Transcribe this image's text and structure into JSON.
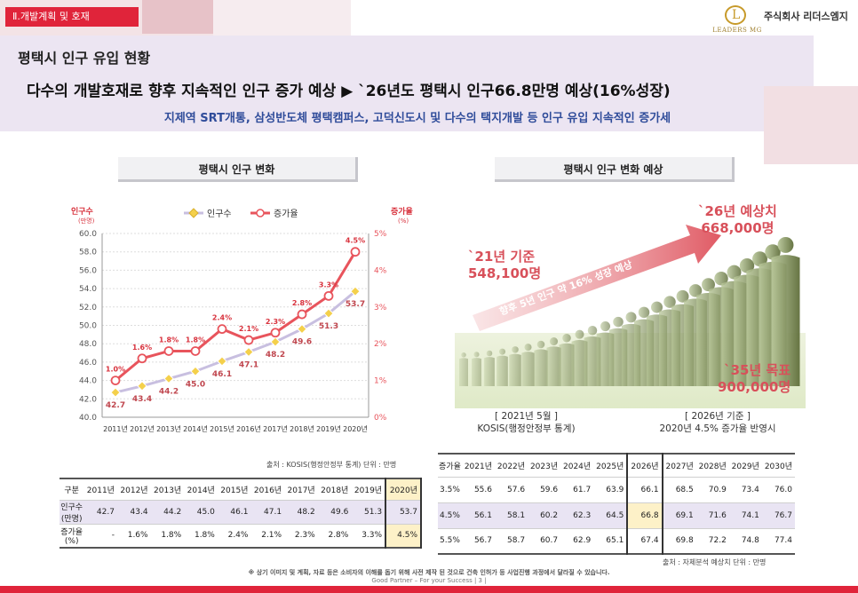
{
  "header": {
    "section_tab": "Ⅱ.개발계획 및 호재",
    "logo_text": "LEADERS MG",
    "company": "주식회사 리더스엠지",
    "page_title": "평택시 인구 유입 현황",
    "headline": "다수의 개발호재로 향후 지속적인 인구 증가 예상 ▶ `26년도 평택시 인구66.8만명 예상(16%성장)",
    "subline": "지제역 SRT개통, 삼성반도체 평택캠퍼스, 고덕신도시 및 다수의 택지개발 등 인구 유입 지속적인 증가세"
  },
  "left_panel": {
    "title": "평택시 인구 변화",
    "source": "출처 : KOSIS(행정안정부 통계)   단위 : 만명"
  },
  "right_panel": {
    "title": "평택시 인구 변화 예상",
    "label_2021": [
      "`21년 기준",
      "548,100명"
    ],
    "label_2026": [
      "`26년 예상치",
      "668,000명"
    ],
    "label_2035": [
      "`35년 목표",
      "900,000명"
    ],
    "arrow_text": "향후 5년 인구 약 16% 성장 예상",
    "caption_left": [
      "[ 2021년 5월 ]",
      "KOSIS(행정안정부 통계)"
    ],
    "caption_right": [
      "[ 2026년 기준 ]",
      "2020년 4.5% 증가율 반영시"
    ],
    "source": "출처 : 자체분석 예상치     단위 : 만명"
  },
  "chart_data": {
    "type": "line",
    "title": "",
    "categories": [
      "2011년",
      "2012년",
      "2013년",
      "2014년",
      "2015년",
      "2016년",
      "2017년",
      "2018년",
      "2019년",
      "2020년"
    ],
    "ylabel": "인구수",
    "ylabel_unit": "(만명)",
    "y2label": "증가율",
    "y2label_unit": "(%)",
    "ylim": [
      40.0,
      60.0
    ],
    "y_ticks": [
      "40.0",
      "42.0",
      "44.0",
      "46.0",
      "48.0",
      "50.0",
      "52.0",
      "54.0",
      "56.0",
      "58.0",
      "60.0"
    ],
    "y2lim": [
      0,
      5
    ],
    "y2_ticks": [
      "0%",
      "1%",
      "2%",
      "3%",
      "4%",
      "5%"
    ],
    "legend_position": "top",
    "series": [
      {
        "name": "인구수",
        "axis": "left",
        "color": "#f4d04b",
        "values": [
          42.7,
          43.4,
          44.2,
          45.0,
          46.1,
          47.1,
          48.2,
          49.6,
          51.3,
          53.7
        ],
        "labels": [
          "42.7",
          "43.4",
          "44.2",
          "45.0",
          "46.1",
          "47.1",
          "48.2",
          "49.6",
          "51.3",
          "53.7"
        ]
      },
      {
        "name": "증가율",
        "axis": "right",
        "color": "#e8545c",
        "values": [
          1.0,
          1.6,
          1.8,
          1.8,
          2.4,
          2.1,
          2.3,
          2.8,
          3.3,
          4.5
        ],
        "labels": [
          "1.0%",
          "1.6%",
          "1.8%",
          "1.8%",
          "2.4%",
          "2.1%",
          "2.3%",
          "2.8%",
          "3.3%",
          "4.5%"
        ]
      }
    ]
  },
  "left_table": {
    "header": [
      "구분",
      "2011년",
      "2012년",
      "2013년",
      "2014년",
      "2015년",
      "2016년",
      "2017년",
      "2018년",
      "2019년",
      "2020년"
    ],
    "rows": [
      [
        "인구수\n(만명)",
        "42.7",
        "43.4",
        "44.2",
        "45.0",
        "46.1",
        "47.1",
        "48.2",
        "49.6",
        "51.3",
        "53.7"
      ],
      [
        "증가율\n(%)",
        "-",
        "1.6%",
        "1.8%",
        "1.8%",
        "2.4%",
        "2.1%",
        "2.3%",
        "2.8%",
        "3.3%",
        "4.5%"
      ]
    ]
  },
  "right_table": {
    "header": [
      "증가율",
      "2021년",
      "2022년",
      "2023년",
      "2024년",
      "2025년",
      "2026년",
      "2027년",
      "2028년",
      "2029년",
      "2030년"
    ],
    "rows": [
      [
        "3.5%",
        "55.6",
        "57.6",
        "59.6",
        "61.7",
        "63.9",
        "66.1",
        "68.5",
        "70.9",
        "73.4",
        "76.0"
      ],
      [
        "4.5%",
        "56.1",
        "58.1",
        "60.2",
        "62.3",
        "64.5",
        "66.8",
        "69.1",
        "71.6",
        "74.1",
        "76.7"
      ],
      [
        "5.5%",
        "56.7",
        "58.7",
        "60.7",
        "62.9",
        "65.1",
        "67.4",
        "69.8",
        "72.2",
        "74.8",
        "77.4"
      ]
    ]
  },
  "footer": {
    "note": "※ 상기 이미지 및 계획, 자료 등은 소비자의 이해를 돕기 위해 사전 제작 된 것으로 건축 인허가 등 사업진행 과정에서 달라질 수 있습니다.",
    "tagline": "Good Partner –    For your Success  |  3  |"
  },
  "colors": {
    "accent_red": "#e0243a",
    "band": "#ece5f2",
    "title_blue": "#2f4c9a",
    "forecast_red": "#d8505a"
  }
}
